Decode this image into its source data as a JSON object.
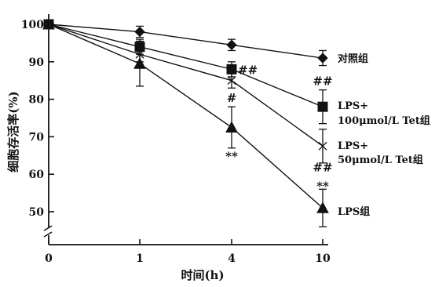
{
  "chart_data": {
    "type": "line",
    "ylabel": "细胞存活率(%)",
    "xlabel": "时间(h)",
    "x": [
      0,
      1,
      4,
      10
    ],
    "x_tick_labels": [
      "0",
      "1",
      "4",
      "10"
    ],
    "y_ticks": [
      50,
      60,
      70,
      80,
      90,
      100
    ],
    "y_tick_labels": [
      "50",
      "60",
      "70",
      "80",
      "90",
      "100"
    ],
    "ylim": [
      40,
      102
    ],
    "y_axis_break": true,
    "grid": false,
    "series": [
      {
        "name": "对照组",
        "label_lines": [
          "对照组"
        ],
        "marker": "diamond",
        "values": [
          100,
          98,
          94.5,
          91
        ],
        "errors": [
          1.2,
          1.5,
          1.5,
          2
        ]
      },
      {
        "name": "LPS+100μmol/L Tet组",
        "label_lines": [
          "LPS+",
          "100μmol/L Tet组"
        ],
        "marker": "square",
        "values": [
          100,
          94,
          88,
          78
        ],
        "errors": [
          1.2,
          2,
          2,
          4.5
        ]
      },
      {
        "name": "LPS+50μmol/L Tet组",
        "label_lines": [
          "LPS+",
          "50μmol/L Tet组"
        ],
        "marker": "cross",
        "values": [
          100,
          92,
          85,
          67.5
        ],
        "errors": [
          1.2,
          2,
          2,
          4.5
        ]
      },
      {
        "name": "LPS组",
        "label_lines": [
          "LPS组"
        ],
        "marker": "triangle",
        "values": [
          100,
          89.5,
          72.5,
          51
        ],
        "errors": [
          1.2,
          6,
          5.5,
          5
        ]
      }
    ],
    "annotations": [
      {
        "text": "##",
        "x": 4,
        "y": 88,
        "anchor": "right"
      },
      {
        "text": "#",
        "x": 4,
        "y": 80.5,
        "anchor": "center"
      },
      {
        "text": "**",
        "x": 4,
        "y": 65,
        "anchor": "center"
      },
      {
        "text": "##",
        "x": 10,
        "y": 85,
        "anchor": "center"
      },
      {
        "text": "##",
        "x": 10,
        "y": 62,
        "anchor": "center"
      },
      {
        "text": "**",
        "x": 10,
        "y": 57,
        "anchor": "center"
      }
    ]
  }
}
